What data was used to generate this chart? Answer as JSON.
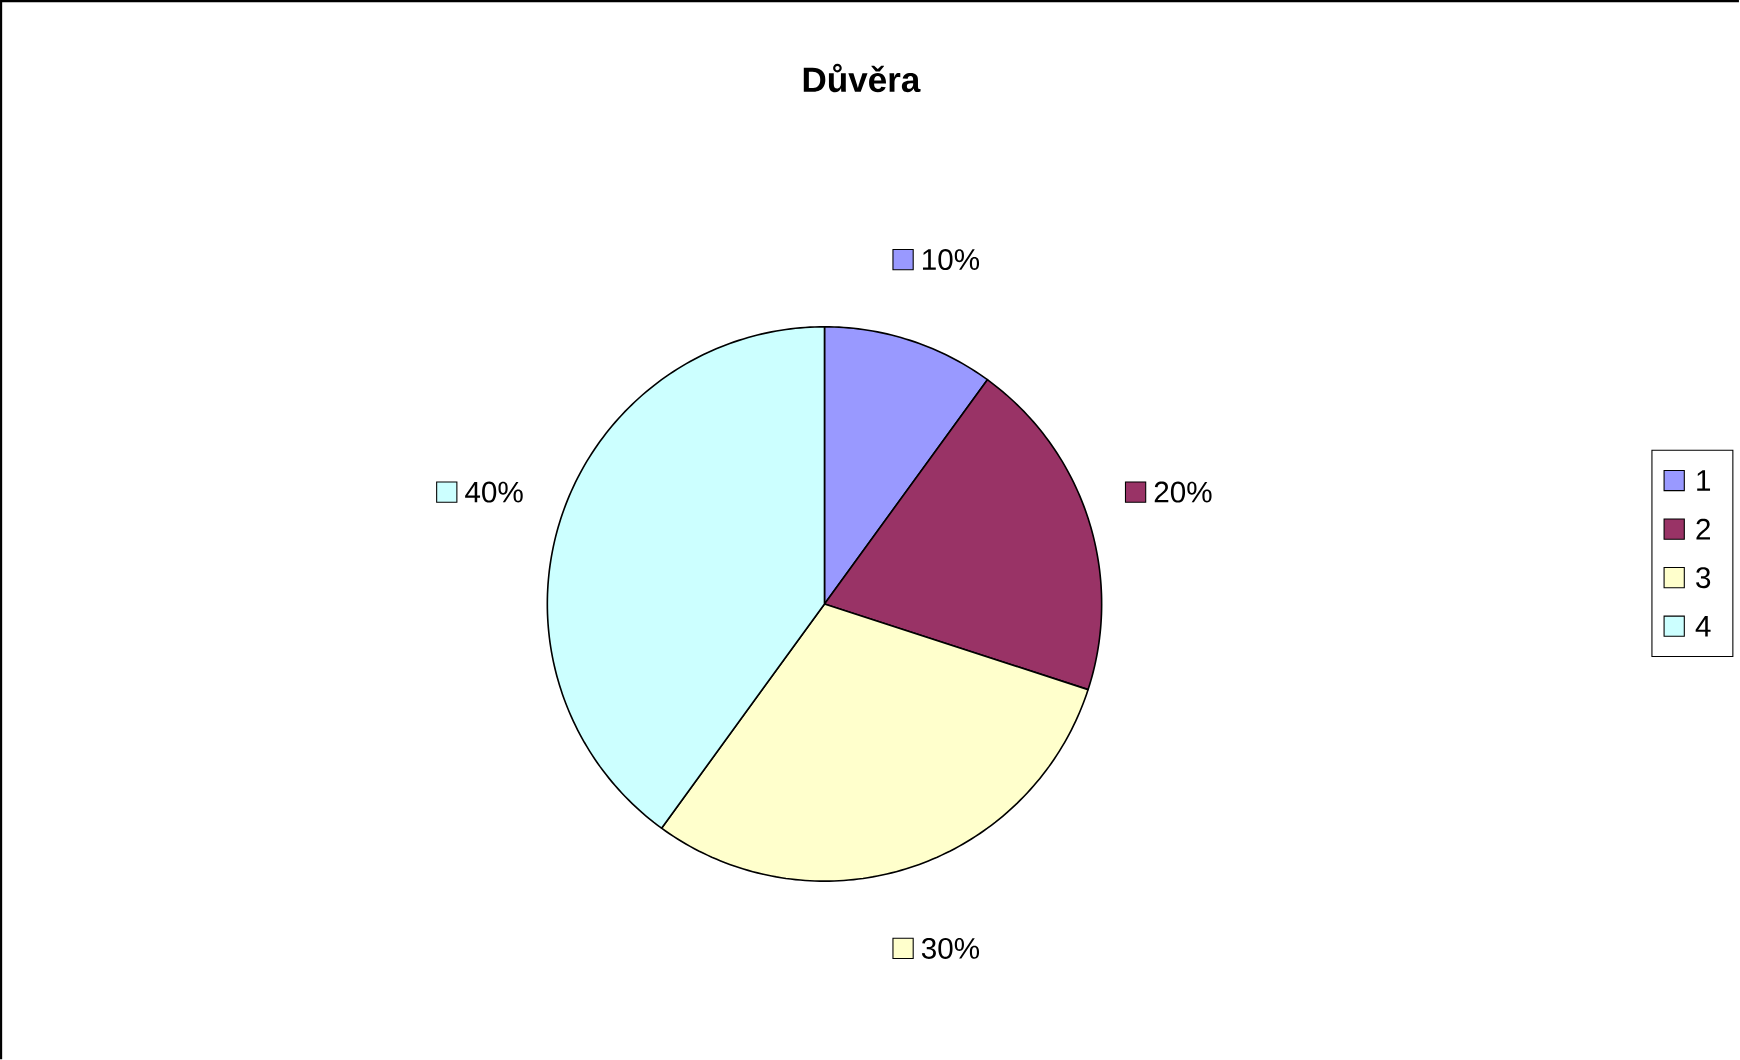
{
  "chart_data": {
    "type": "pie",
    "title": "Důvěra",
    "categories": [
      "1",
      "2",
      "3",
      "4"
    ],
    "values": [
      10,
      20,
      30,
      40
    ],
    "value_labels": [
      "10%",
      "20%",
      "30%",
      "40%"
    ],
    "colors": [
      "#9999ff",
      "#993366",
      "#ffffcc",
      "#ccffff"
    ],
    "legend": "right"
  }
}
